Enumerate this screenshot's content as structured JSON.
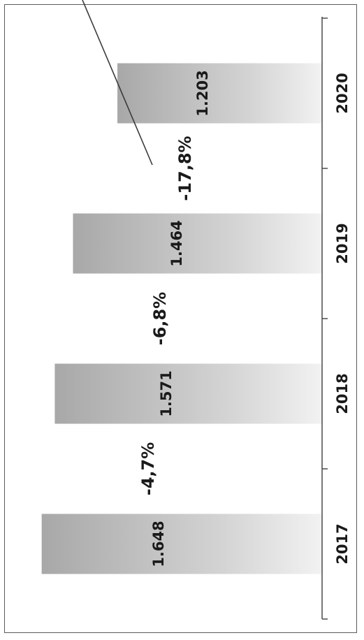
{
  "chart_data": {
    "type": "bar",
    "orientation": "rotated-90",
    "categories": [
      "2017",
      "2018",
      "2019",
      "2020"
    ],
    "values": [
      1648,
      1571,
      1464,
      1203
    ],
    "value_labels": [
      "1.648",
      "1.571",
      "1.464",
      "1.203"
    ],
    "changes": [
      "-4,7%",
      "-6,8%",
      "-17,8%"
    ],
    "ylim": [
      0,
      1700
    ],
    "grid": false,
    "legend": "none",
    "bar_color": "#b9b9b9",
    "axis_color": "#4a4a4a",
    "text_color": "#1a1a1a"
  }
}
